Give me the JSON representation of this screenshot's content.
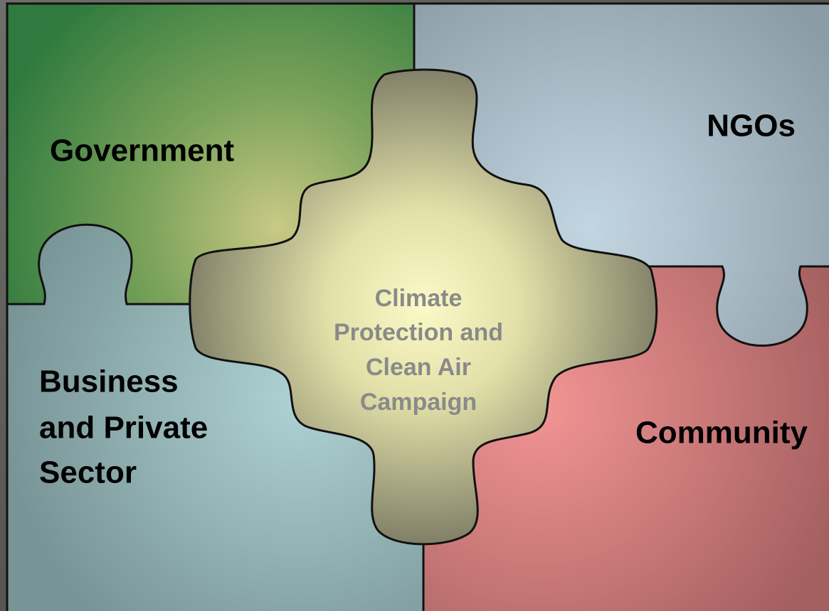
{
  "pieces": [
    {
      "lines": [
        "Government"
      ]
    },
    {
      "lines": [
        "NGOs"
      ]
    },
    {
      "lines": [
        "Business",
        "and Private",
        "Sector"
      ]
    },
    {
      "lines": [
        "Community"
      ]
    }
  ],
  "center": {
    "lines": [
      "Climate",
      "Protection and",
      "Clean Air",
      "Campaign"
    ]
  }
}
